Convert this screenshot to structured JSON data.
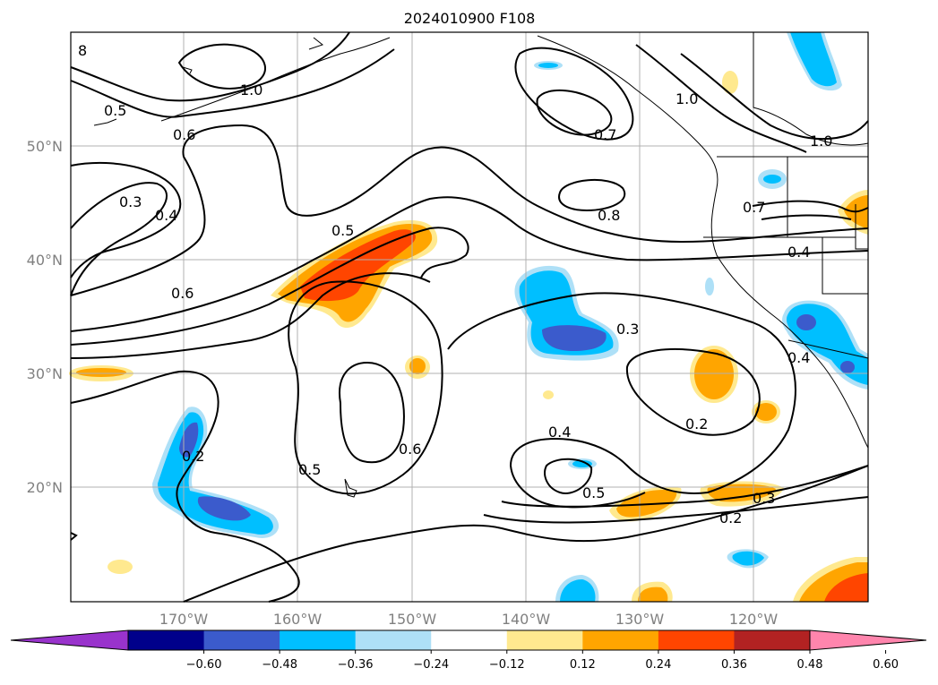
{
  "title": "2024010900 F108",
  "lat_labels": [
    "50°N",
    "40°N",
    "30°N",
    "20°N"
  ],
  "lon_labels": [
    "170°W",
    "160°W",
    "150°W",
    "140°W",
    "130°W",
    "120°W"
  ],
  "colorbar": {
    "ticks": [
      "−0.60",
      "−0.48",
      "−0.36",
      "−0.24",
      "−0.12",
      "0.12",
      "0.24",
      "0.36",
      "0.48",
      "0.60"
    ],
    "colors": [
      "#9933cc",
      "#00008b",
      "#3b5bcc",
      "#00bfff",
      "#aee0f7",
      "#ffffff",
      "#ffe98f",
      "#ffa500",
      "#ff4500",
      "#b22222",
      "#ff85ad"
    ]
  },
  "contour_labels": [
    "8",
    "1.0",
    "0.5",
    "0.6",
    "0.3",
    "0.4",
    "0.6",
    "0.5",
    "0.7",
    "0.8",
    "1.0",
    "1.0",
    "0.7",
    "0.4",
    "0.3",
    "0.4",
    "0.2",
    "0.4",
    "0.6",
    "0.5",
    "0.5",
    "0.3",
    "0.2",
    "0.2"
  ],
  "fill_colors": {
    "light_blue": "#aee0f7",
    "blue": "#00bfff",
    "dark_blue": "#3b5bcc",
    "light_orange": "#ffe98f",
    "orange": "#ffa500",
    "red_orange": "#ff4500"
  }
}
